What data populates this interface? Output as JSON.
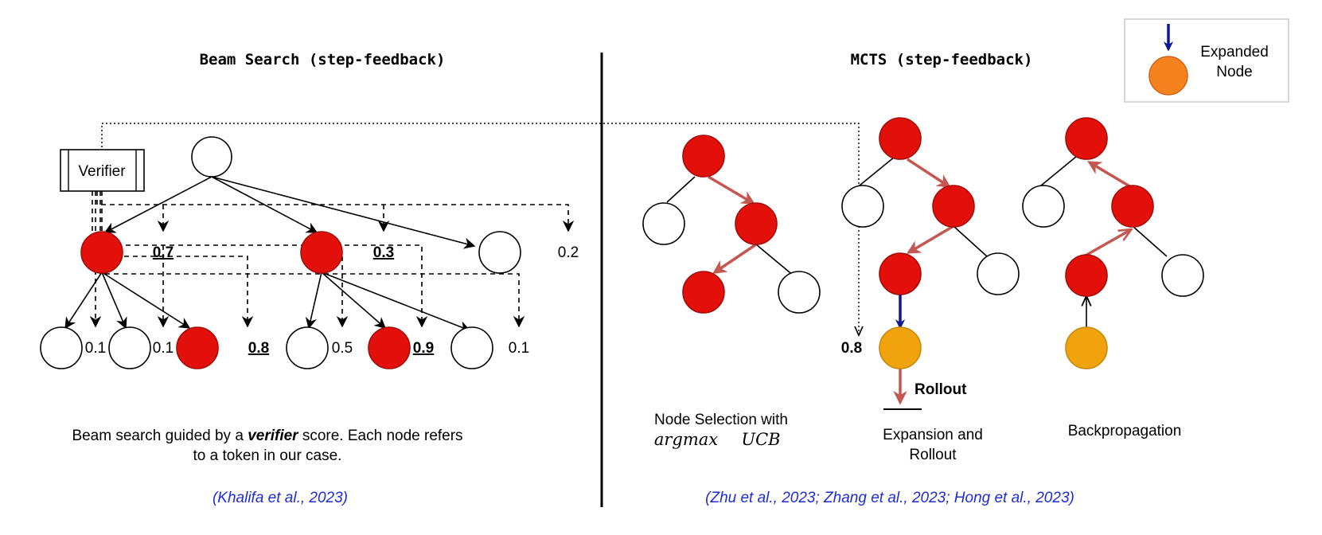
{
  "beam": {
    "title": "Beam Search (step-feedback)",
    "verifier_label": "Verifier",
    "level1_scores": [
      "0.7",
      "0.3",
      "0.2"
    ],
    "level2_scores": [
      "0.1",
      "0.1",
      "0.8",
      "0.5",
      "0.9",
      "0.1"
    ],
    "caption_prefix": "Beam search guided by a ",
    "caption_emphasis": "verifier",
    "caption_suffix": " score. Each node refers",
    "caption_line2": "to a token in our case.",
    "citation": "(Khalifa et al., 2023)"
  },
  "mcts": {
    "title": "MCTS (step-feedback)",
    "verifier_score": "0.8",
    "rollout_label": "Rollout",
    "selection_caption": "Node Selection with",
    "selection_math_1": "argmax",
    "selection_math_2": "UCB",
    "expansion_caption_1": "Expansion and",
    "expansion_caption_2": "Rollout",
    "backprop_caption": "Backpropagation",
    "citation": "(Zhu et al., 2023; Zhang et al., 2023; Hong et al., 2023)"
  },
  "legend": {
    "label_1": "Expanded",
    "label_2": "Node"
  },
  "colors": {
    "selected_node": "#e20f0a",
    "expanded_node": "#f0a30c",
    "legend_node": "#f5821f",
    "path_arrow": "#c4574f",
    "expand_arrow": "#0d1796",
    "citation": "#1f2bd6"
  }
}
